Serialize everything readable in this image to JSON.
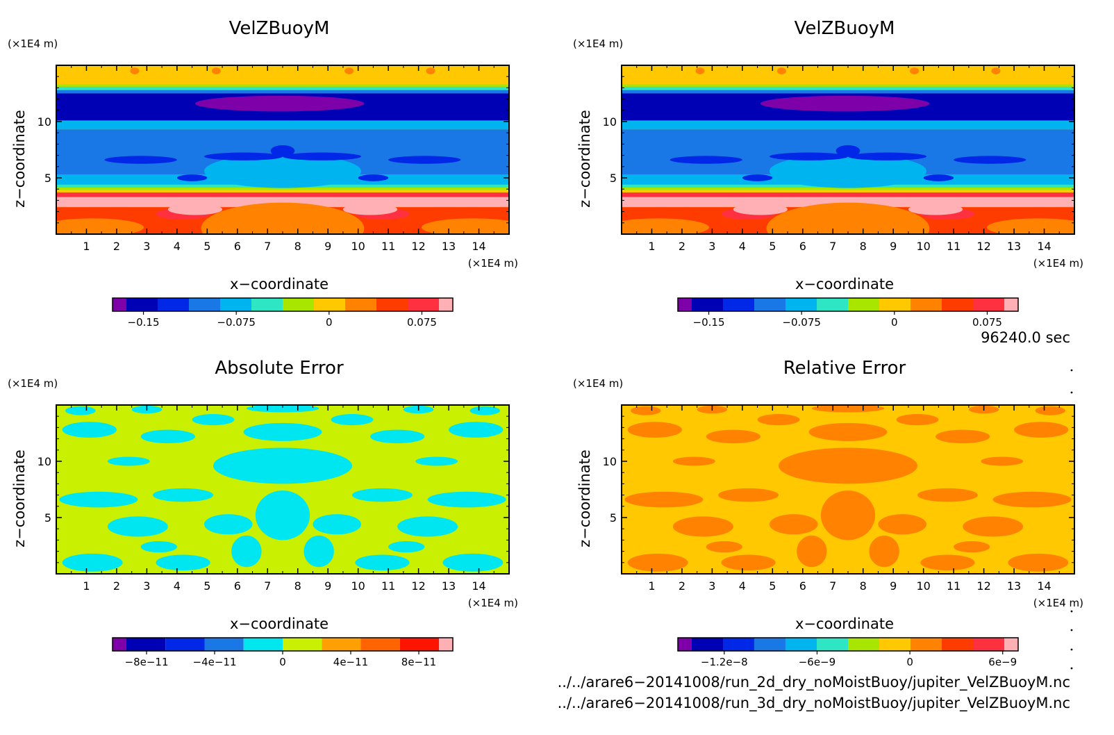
{
  "chart_data": [
    {
      "type": "heatmap",
      "title": "VelZBuoyM",
      "xlabel": "x−coordinate",
      "ylabel": "z−coordinate",
      "x_unit": "(×1E4 m)",
      "y_unit": "(×1E4 m)",
      "xlim": [
        0,
        15
      ],
      "ylim": [
        0,
        15
      ],
      "xticks": [
        "1",
        "2",
        "3",
        "4",
        "5",
        "6",
        "7",
        "8",
        "9",
        "10",
        "11",
        "12",
        "13",
        "14"
      ],
      "yticks": [
        "5",
        "10"
      ],
      "colorbar": {
        "colors": [
          "#7e00a8",
          "#0000b4",
          "#0028e6",
          "#1a78e6",
          "#00b4f0",
          "#2ee6c4",
          "#a8e600",
          "#ffc800",
          "#ff8200",
          "#ff3c00",
          "#ff3040",
          "#ffb0b4"
        ],
        "tick_labels": [
          "−0.15",
          "−0.075",
          "0",
          "0.075"
        ],
        "tick_values": [
          -0.15,
          -0.075,
          0,
          0.075
        ],
        "range": [
          -0.175,
          0.1
        ]
      }
    },
    {
      "type": "heatmap",
      "title": "VelZBuoyM",
      "xlabel": "x−coordinate",
      "ylabel": "z−coordinate",
      "x_unit": "(×1E4 m)",
      "y_unit": "(×1E4 m)",
      "xlim": [
        0,
        15
      ],
      "ylim": [
        0,
        15
      ],
      "xticks": [
        "1",
        "2",
        "3",
        "4",
        "5",
        "6",
        "7",
        "8",
        "9",
        "10",
        "11",
        "12",
        "13",
        "14"
      ],
      "yticks": [
        "5",
        "10"
      ],
      "colorbar": {
        "colors": [
          "#7e00a8",
          "#0000b4",
          "#0028e6",
          "#1a78e6",
          "#00b4f0",
          "#2ee6c4",
          "#a8e600",
          "#ffc800",
          "#ff8200",
          "#ff3c00",
          "#ff3040",
          "#ffb0b4"
        ],
        "tick_labels": [
          "−0.15",
          "−0.075",
          "0",
          "0.075"
        ],
        "tick_values": [
          -0.15,
          -0.075,
          0,
          0.075
        ],
        "range": [
          -0.175,
          0.1
        ]
      }
    },
    {
      "type": "heatmap",
      "title": "Absolute Error",
      "xlabel": "x−coordinate",
      "ylabel": "z−coordinate",
      "x_unit": "(×1E4 m)",
      "y_unit": "(×1E4 m)",
      "xlim": [
        0,
        15
      ],
      "ylim": [
        0,
        15
      ],
      "xticks": [
        "1",
        "2",
        "3",
        "4",
        "5",
        "6",
        "7",
        "8",
        "9",
        "10",
        "11",
        "12",
        "13",
        "14"
      ],
      "yticks": [
        "5",
        "10"
      ],
      "colorbar": {
        "colors": [
          "#7e00a8",
          "#0000b4",
          "#0028e6",
          "#1a78e6",
          "#00e6f0",
          "#c8f000",
          "#ffa000",
          "#ff6400",
          "#ff1400",
          "#ffb0b4"
        ],
        "tick_labels": [
          "−8e−11",
          "−4e−11",
          "0",
          "4e−11",
          "8e−11"
        ],
        "tick_values": [
          -8e-11,
          -4e-11,
          0,
          4e-11,
          8e-11
        ],
        "range": [
          -1e-10,
          1e-10
        ]
      }
    },
    {
      "type": "heatmap",
      "title": "Relative Error",
      "xlabel": "x−coordinate",
      "ylabel": "z−coordinate",
      "x_unit": "(×1E4 m)",
      "y_unit": "(×1E4 m)",
      "xlim": [
        0,
        15
      ],
      "ylim": [
        0,
        15
      ],
      "xticks": [
        "1",
        "2",
        "3",
        "4",
        "5",
        "6",
        "7",
        "8",
        "9",
        "10",
        "11",
        "12",
        "13",
        "14"
      ],
      "yticks": [
        "5",
        "10"
      ],
      "colorbar": {
        "colors": [
          "#7e00a8",
          "#0000b4",
          "#0028e6",
          "#1a78e6",
          "#00b4f0",
          "#2ee6c4",
          "#a8e600",
          "#ffc800",
          "#ff8200",
          "#ff3c00",
          "#ff3040",
          "#ffb0b4"
        ],
        "tick_labels": [
          "−1.2e−8",
          "−6e−9",
          "0",
          "6e−9"
        ],
        "tick_values": [
          -1.2e-08,
          -6e-09,
          0,
          6e-09
        ],
        "range": [
          -1.5e-08,
          7e-09
        ]
      }
    }
  ],
  "info": {
    "time": "96240.0 sec",
    "file1": "../../arare6−20141008/run_2d_dry_noMoistBuoy/jupiter_VelZBuoyM.nc",
    "file2": "../../arare6−20141008/run_3d_dry_noMoistBuoy/jupiter_VelZBuoyM.nc"
  }
}
